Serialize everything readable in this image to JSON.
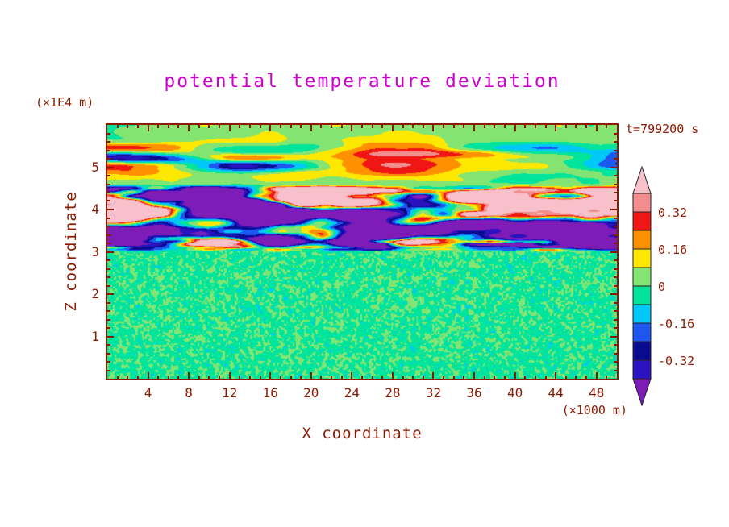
{
  "colors": {
    "background": "#ffffff",
    "axis_text": "#8b1a00",
    "frame": "#8b1a00",
    "title_text": "#cf00cf",
    "colorbar_outline": "#222222"
  },
  "chart_data": {
    "type": "heatmap",
    "title": "potential temperature deviation",
    "time_label": "t=799200 s",
    "grid": false,
    "legend_position": "right-colorbar",
    "x_axis": {
      "label": "X coordinate",
      "unit": "(×1000 m)",
      "range": [
        0,
        50
      ],
      "tick_values": [
        4,
        8,
        12,
        16,
        20,
        24,
        28,
        32,
        36,
        40,
        44,
        48
      ],
      "minor_step": 1
    },
    "y_axis": {
      "label": "Z coordinate",
      "unit": "(×1E4 m)",
      "range": [
        0,
        6
      ],
      "tick_values": [
        1,
        2,
        3,
        4,
        5
      ],
      "minor_step": 0.2
    },
    "colorbar": {
      "levels": [
        -0.4,
        -0.32,
        -0.24,
        -0.16,
        -0.08,
        0,
        0.08,
        0.16,
        0.24,
        0.32,
        0.4
      ],
      "tick_labels": [
        {
          "text": "0.32",
          "value": 0.32
        },
        {
          "text": "0.16",
          "value": 0.16
        },
        {
          "text": "0",
          "value": 0
        },
        {
          "text": "-0.16",
          "value": -0.16
        },
        {
          "text": "-0.32",
          "value": -0.32
        }
      ],
      "colors_low_to_high": [
        "#7e1cb8",
        "#2b11c0",
        "#0b0b8f",
        "#1e56f0",
        "#00c8f8",
        "#00e49c",
        "#84e472",
        "#ffe800",
        "#ff9000",
        "#f01616",
        "#f28e8e",
        "#f7c0ca"
      ]
    },
    "field_model": {
      "description": "procedural approximation of the simulated deviation field",
      "seed": 11,
      "speckle": {
        "z_top": 3.02,
        "bias": -0.02,
        "amplitude": 0.105,
        "octaves": [
          {
            "sx": 2.4,
            "sy": 2.4,
            "w": 0.6
          },
          {
            "sx": 5,
            "sy": 5,
            "w": 0.4
          }
        ]
      },
      "turbulence": {
        "z_bottom": 3.0,
        "z_top": 4.6,
        "gain": 1.15,
        "bias": 0.04,
        "octaves": [
          {
            "sx": 130,
            "sy": 22,
            "w": 1.0
          },
          {
            "sx": 64,
            "sy": 11,
            "w": 0.55
          },
          {
            "sx": 30,
            "sy": 5.5,
            "w": 0.28
          }
        ],
        "edge_stripes": {
          "sx": 42,
          "sy": 3.6,
          "w": 0.5,
          "center": 3.14,
          "sigma": 0.16
        },
        "warm_band": {
          "amp": 0.05,
          "center": 4.35,
          "sigma": 0.22
        }
      },
      "upper_waves": {
        "background": 0.045,
        "amp": 0.5,
        "center": 5.2,
        "sigma": 0.34,
        "octaves": [
          {
            "sx": 175,
            "sy": 13,
            "w": 1.1
          },
          {
            "sx": 90,
            "sy": 8.5,
            "w": 0.35
          }
        ],
        "texture": {
          "sx": 40,
          "sy": 10,
          "w": 0.05
        }
      }
    }
  }
}
